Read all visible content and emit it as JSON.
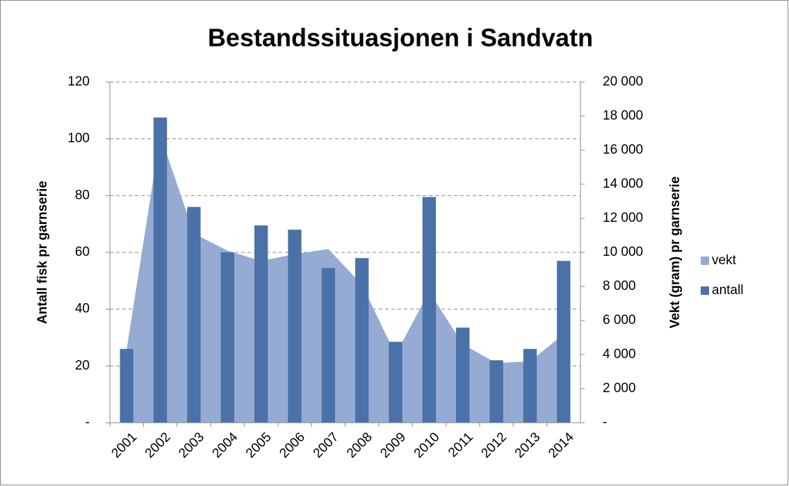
{
  "chart_data": {
    "type": "bar-area",
    "title": "Bestandssituasjonen i Sandvatn",
    "y_label": "Antall fisk pr garnserie",
    "y2_label": "Vekt (gram) pr garnserie",
    "categories": [
      "2001",
      "2002",
      "2003",
      "2004",
      "2005",
      "2006",
      "2007",
      "2008",
      "2009",
      "2010",
      "2011",
      "2012",
      "2013",
      "2014"
    ],
    "series": [
      {
        "name": "vekt",
        "color": "#95abd3",
        "axis": "y2",
        "kind": "area",
        "values": [
          4300,
          16900,
          11100,
          10100,
          9500,
          9900,
          10200,
          8100,
          4000,
          7700,
          4600,
          3500,
          3600,
          5200
        ]
      },
      {
        "name": "antall",
        "color": "#4a71a8",
        "kind": "bar",
        "values": [
          26,
          107.5,
          76,
          60,
          69.5,
          68,
          54.5,
          58,
          28.5,
          79.5,
          33.5,
          22,
          26,
          57
        ]
      }
    ],
    "ylim": [
      0,
      120
    ],
    "yticks": [
      {
        "value": 0,
        "label": "-"
      },
      20,
      40,
      60,
      80,
      100,
      120
    ],
    "y2lim": [
      0,
      20000
    ],
    "y2ticks": [
      {
        "value": 0,
        "label": "-"
      },
      {
        "value": 2000,
        "label": "2 000"
      },
      {
        "value": 4000,
        "label": "4 000"
      },
      {
        "value": 6000,
        "label": "6 000"
      },
      {
        "value": 8000,
        "label": "8 000"
      },
      {
        "value": 10000,
        "label": "10 000"
      },
      {
        "value": 12000,
        "label": "12 000"
      },
      {
        "value": 14000,
        "label": "14 000"
      },
      {
        "value": 16000,
        "label": "16 000"
      },
      {
        "value": 18000,
        "label": "18 000"
      },
      {
        "value": 20000,
        "label": "20 000"
      }
    ],
    "grid": true,
    "legend": "right"
  }
}
